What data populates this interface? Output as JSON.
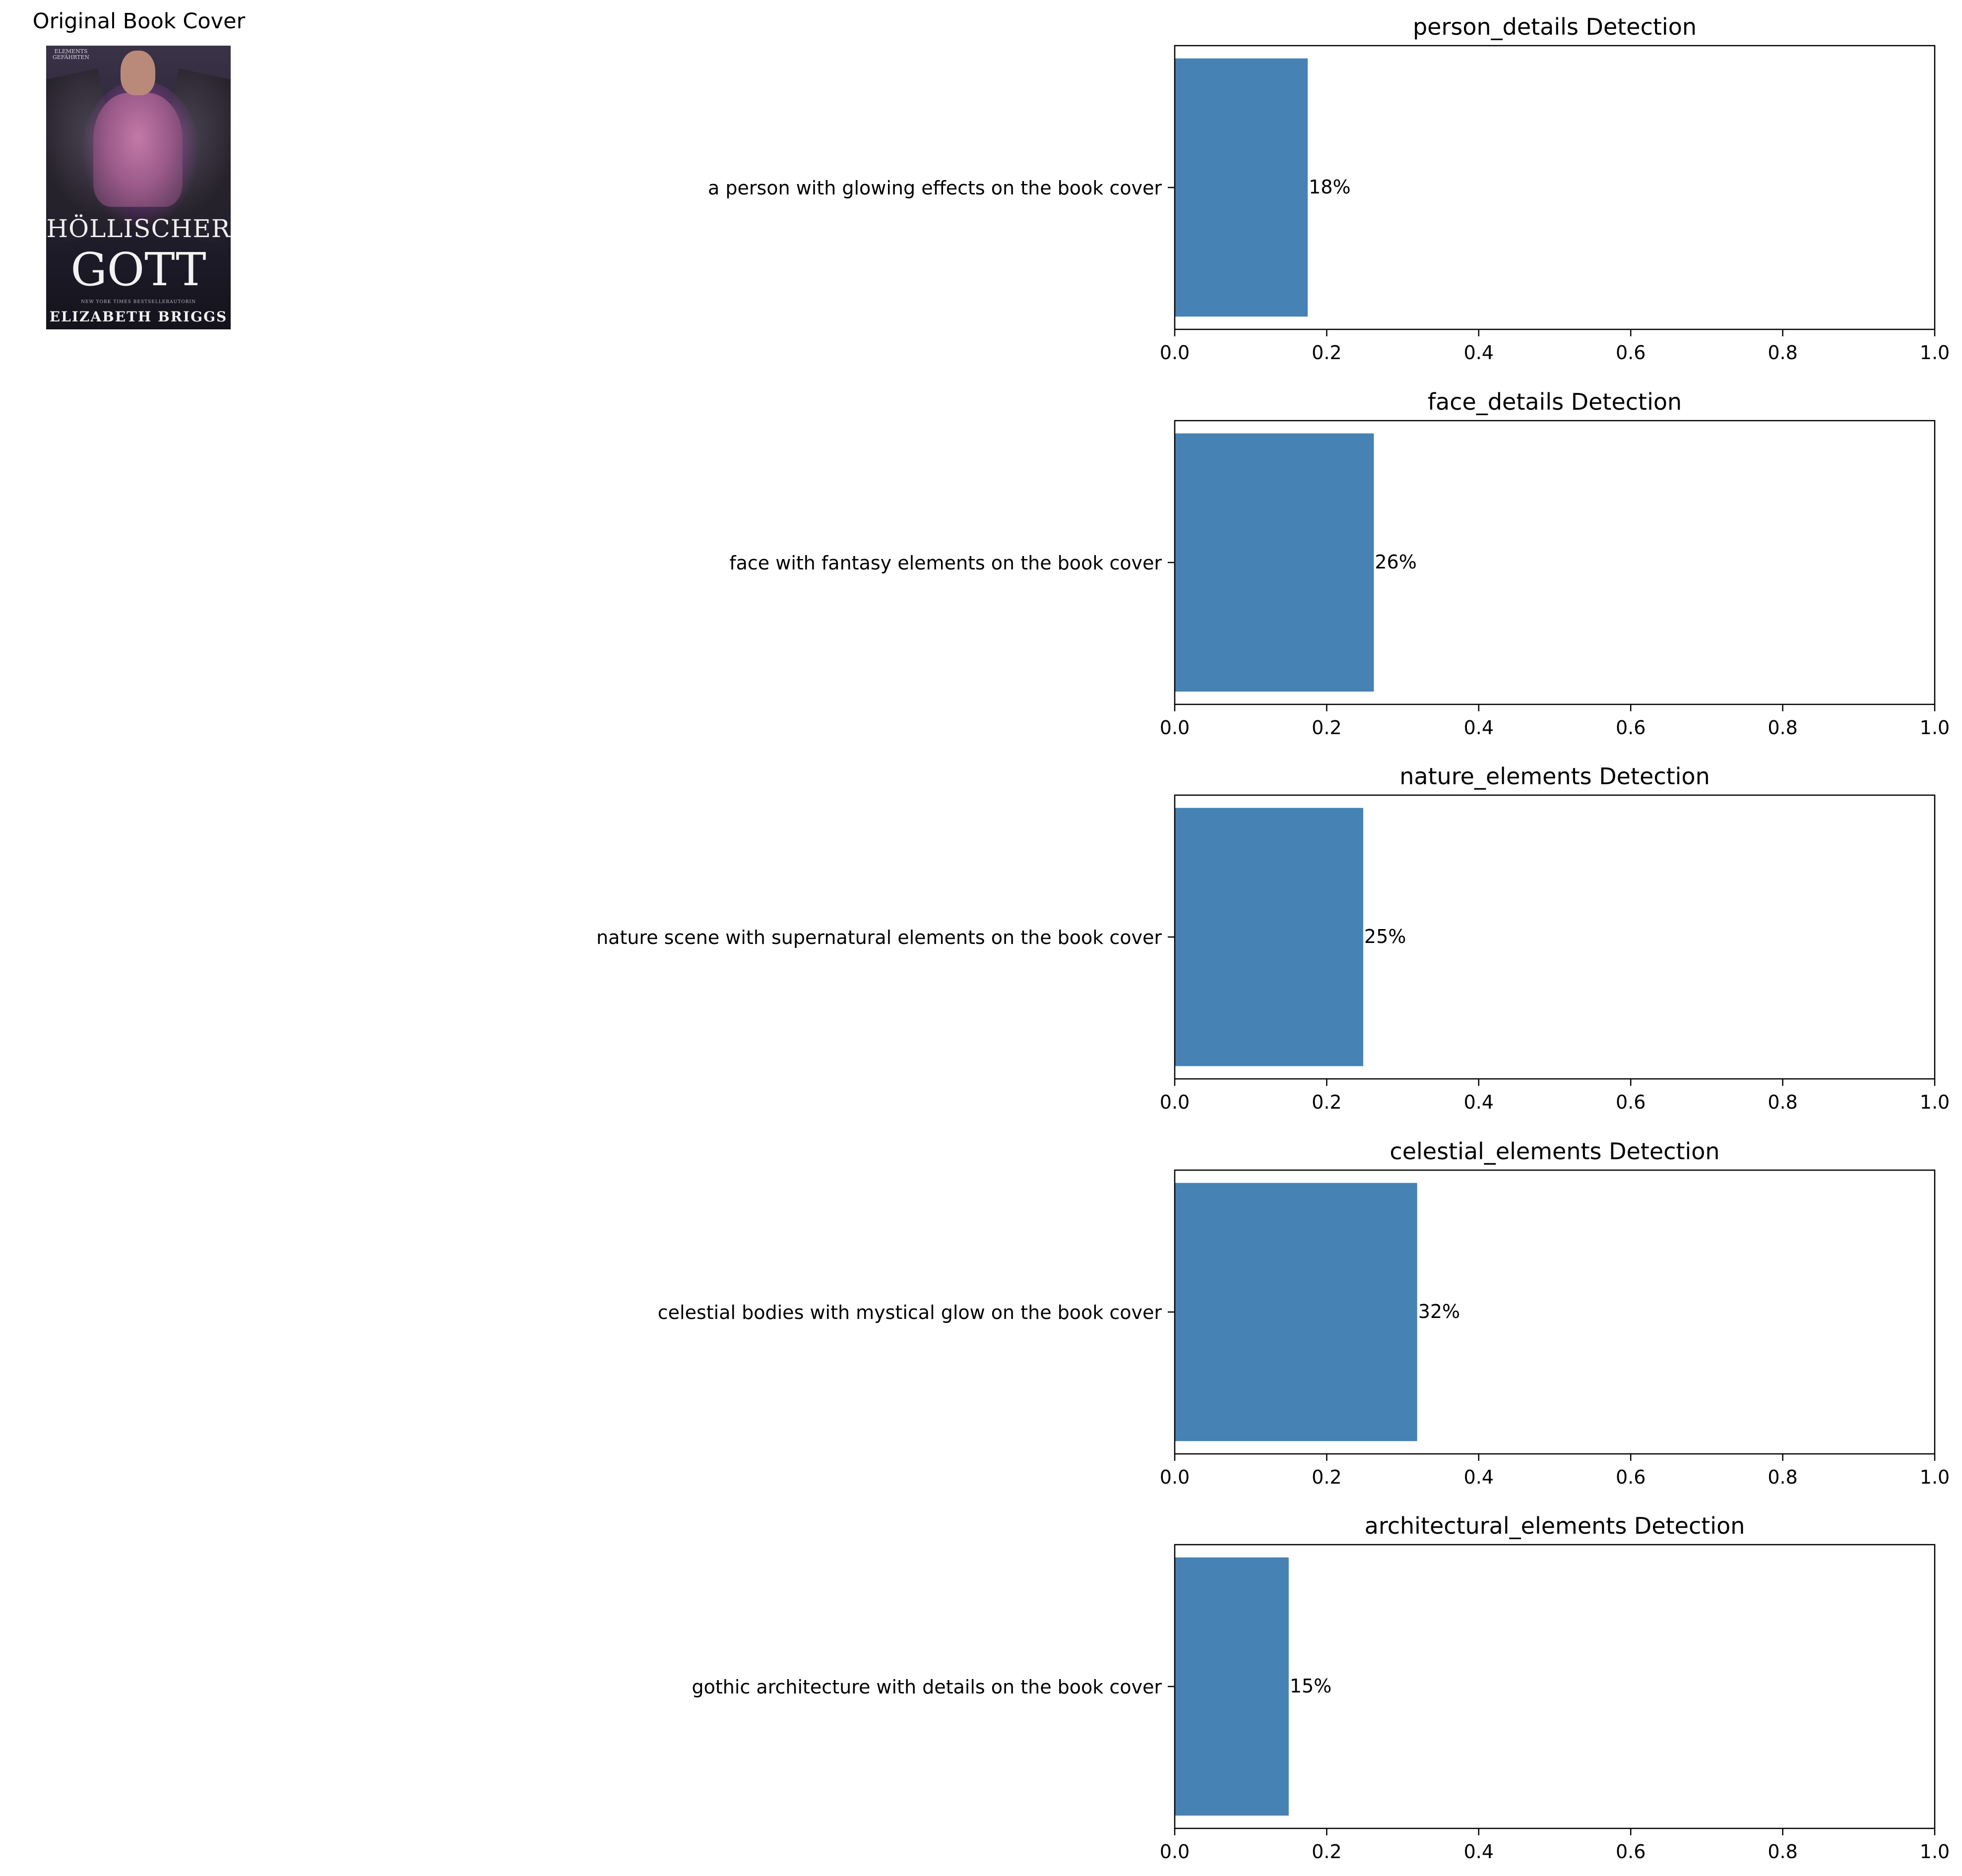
{
  "cover": {
    "heading": "Original Book Cover",
    "series_text": "ELEMENTS GEFÄHRTEN",
    "title_line1": "HÖLLISCHER",
    "title_line2": "GOTT",
    "tagline": "NEW YORK TIMES BESTSELLERAUTORIN",
    "author": "ELIZABETH BRIGGS"
  },
  "colors": {
    "bar": "#4682b4",
    "axis": "#000000",
    "background": "#ffffff"
  },
  "chart_data": [
    {
      "type": "bar",
      "orientation": "horizontal",
      "title": "person_details Detection",
      "categories": [
        "a person with glowing effects on the book cover"
      ],
      "values": [
        0.175
      ],
      "value_labels": [
        "18%"
      ],
      "xlim": [
        0,
        1
      ],
      "xticks": [
        "0.0",
        "0.2",
        "0.4",
        "0.6",
        "0.8",
        "1.0"
      ],
      "grid": false
    },
    {
      "type": "bar",
      "orientation": "horizontal",
      "title": "face_details Detection",
      "categories": [
        "face with fantasy elements on the book cover"
      ],
      "values": [
        0.262
      ],
      "value_labels": [
        "26%"
      ],
      "xlim": [
        0,
        1
      ],
      "xticks": [
        "0.0",
        "0.2",
        "0.4",
        "0.6",
        "0.8",
        "1.0"
      ],
      "grid": false
    },
    {
      "type": "bar",
      "orientation": "horizontal",
      "title": "nature_elements Detection",
      "categories": [
        "nature scene with supernatural elements on the book cover"
      ],
      "values": [
        0.248
      ],
      "value_labels": [
        "25%"
      ],
      "xlim": [
        0,
        1
      ],
      "xticks": [
        "0.0",
        "0.2",
        "0.4",
        "0.6",
        "0.8",
        "1.0"
      ],
      "grid": false
    },
    {
      "type": "bar",
      "orientation": "horizontal",
      "title": "celestial_elements Detection",
      "categories": [
        "celestial bodies with mystical glow on the book cover"
      ],
      "values": [
        0.319
      ],
      "value_labels": [
        "32%"
      ],
      "xlim": [
        0,
        1
      ],
      "xticks": [
        "0.0",
        "0.2",
        "0.4",
        "0.6",
        "0.8",
        "1.0"
      ],
      "grid": false
    },
    {
      "type": "bar",
      "orientation": "horizontal",
      "title": "architectural_elements Detection",
      "categories": [
        "gothic architecture with details on the book cover"
      ],
      "values": [
        0.15
      ],
      "value_labels": [
        "15%"
      ],
      "xlim": [
        0,
        1
      ],
      "xticks": [
        "0.0",
        "0.2",
        "0.4",
        "0.6",
        "0.8",
        "1.0"
      ],
      "grid": false
    }
  ]
}
